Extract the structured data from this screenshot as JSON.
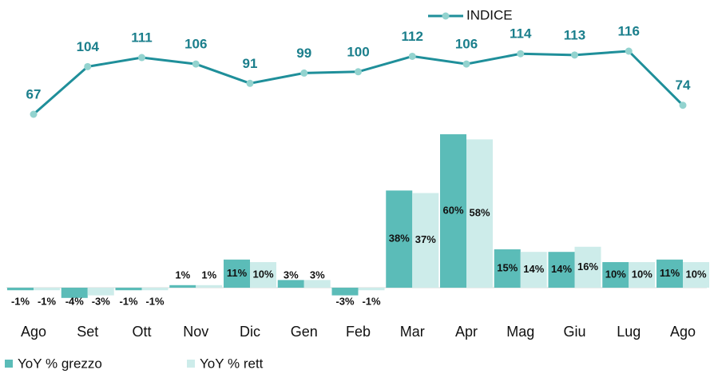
{
  "chart_data": {
    "type": "combo",
    "categories": [
      "Ago",
      "Set",
      "Ott",
      "Nov",
      "Dic",
      "Gen",
      "Feb",
      "Mar",
      "Apr",
      "Mag",
      "Giu",
      "Lug",
      "Ago"
    ],
    "series": [
      {
        "name": "INDICE",
        "type": "line",
        "color": "#1f8f9a",
        "marker_color": "#93d3cf",
        "values": [
          67,
          104,
          111,
          106,
          91,
          99,
          100,
          112,
          106,
          114,
          113,
          116,
          74
        ]
      },
      {
        "name": "YoY % grezzo",
        "type": "bar",
        "color": "#5bbcb8",
        "values": [
          -1,
          -4,
          -1,
          1,
          11,
          3,
          -3,
          38,
          60,
          15,
          14,
          10,
          11
        ],
        "value_labels": [
          "-1%",
          "-4%",
          "-1%",
          "1%",
          "11%",
          "3%",
          "-3%",
          "38%",
          "60%",
          "15%",
          "14%",
          "10%",
          "11%"
        ]
      },
      {
        "name": "YoY % rett",
        "type": "bar",
        "color": "#cdecea",
        "values": [
          -1,
          -3,
          -1,
          1,
          10,
          3,
          -1,
          37,
          58,
          14,
          16,
          10,
          10
        ],
        "value_labels": [
          "-1%",
          "-3%",
          "-1%",
          "1%",
          "10%",
          "3%",
          "-1%",
          "37%",
          "58%",
          "14%",
          "16%",
          "10%",
          "10%"
        ]
      }
    ]
  }
}
